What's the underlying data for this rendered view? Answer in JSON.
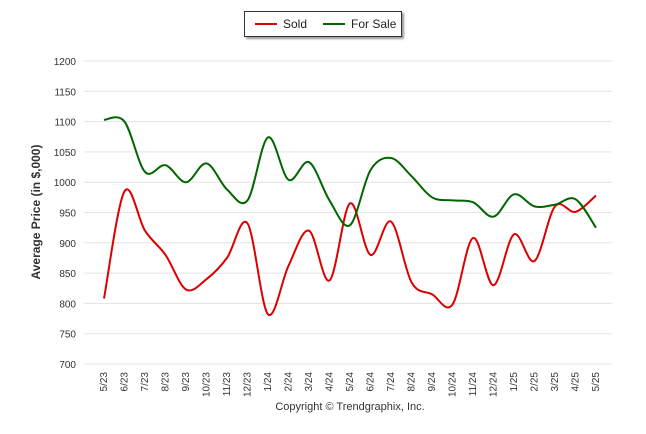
{
  "chart_data": {
    "type": "line",
    "title": "",
    "xlabel": "",
    "ylabel": "Average Price (in $,000)",
    "ylim": [
      700,
      1200
    ],
    "yticks": [
      700,
      750,
      800,
      850,
      900,
      950,
      1000,
      1050,
      1100,
      1150,
      1200
    ],
    "grid": true,
    "legend_position": "top-center",
    "categories": [
      "5/23",
      "6/23",
      "7/23",
      "8/23",
      "9/23",
      "10/23",
      "11/23",
      "12/23",
      "1/24",
      "2/24",
      "3/24",
      "4/24",
      "5/24",
      "6/24",
      "7/24",
      "8/24",
      "9/24",
      "10/24",
      "11/24",
      "12/24",
      "1/25",
      "2/25",
      "3/25",
      "4/25",
      "5/25"
    ],
    "series": [
      {
        "name": "Sold",
        "color": "#dd0000",
        "values": [
          808,
          985,
          920,
          880,
          823,
          840,
          875,
          932,
          782,
          862,
          920,
          838,
          965,
          880,
          935,
          835,
          815,
          798,
          908,
          830,
          914,
          870,
          960,
          951,
          978
        ]
      },
      {
        "name": "For Sale",
        "color": "#006600",
        "values": [
          1103,
          1100,
          1017,
          1028,
          1000,
          1031,
          988,
          970,
          1074,
          1004,
          1033,
          970,
          929,
          1020,
          1040,
          1010,
          975,
          970,
          967,
          943,
          980,
          960,
          963,
          972,
          925
        ]
      }
    ]
  },
  "footer": {
    "copyright": "Copyright © Trendgraphix, Inc."
  }
}
